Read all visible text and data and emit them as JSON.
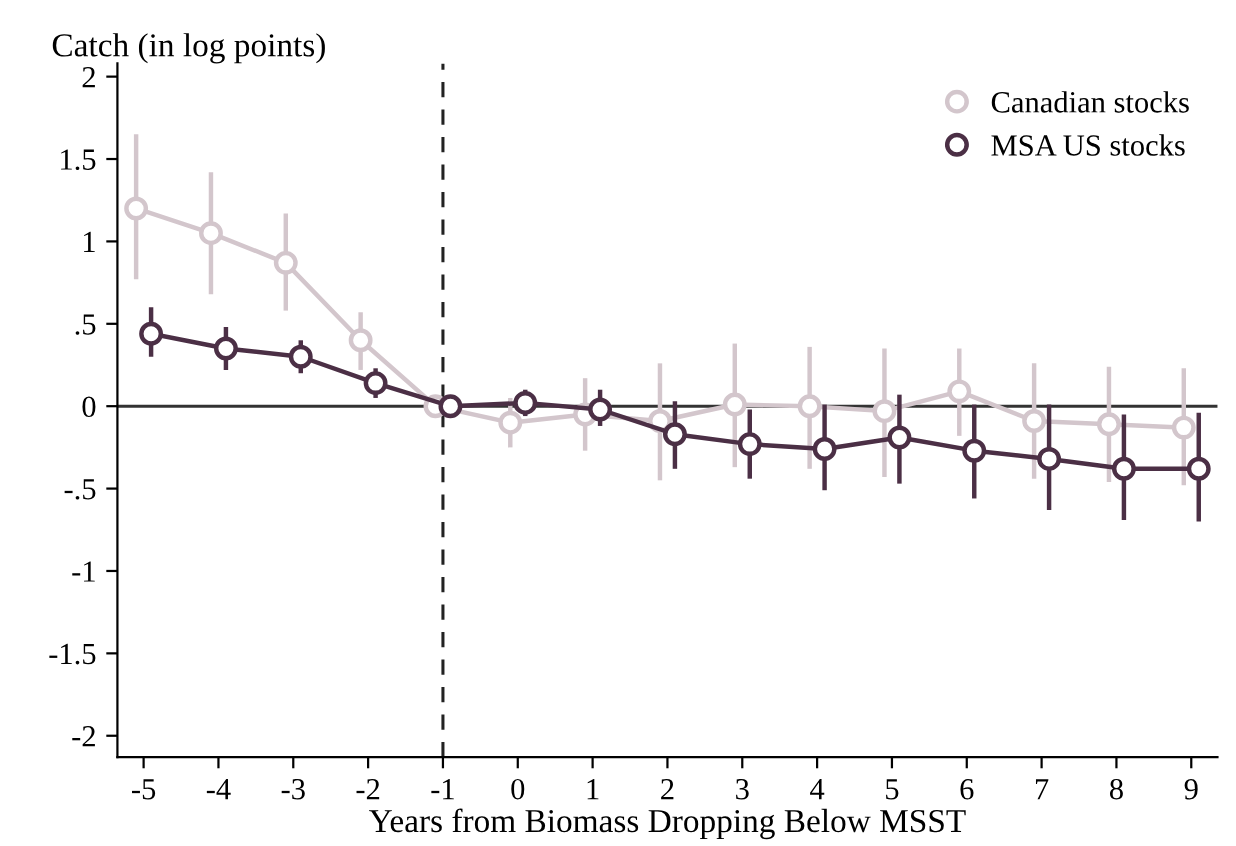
{
  "chart_data": {
    "type": "line",
    "ylabel": "Catch (in log points)",
    "xlabel": "Years from Biomass Dropping Below MSST",
    "series": [
      {
        "name": "Canadian stocks",
        "color": "#d3c6cc",
        "x": [
          -5.1,
          -4.1,
          -3.1,
          -2.1,
          -1.1,
          -0.1,
          0.9,
          1.9,
          2.9,
          3.9,
          4.9,
          5.9,
          6.9,
          7.9,
          8.9
        ],
        "values": [
          1.2,
          1.05,
          0.87,
          0.4,
          0,
          -0.1,
          -0.05,
          -0.09,
          0.01,
          0.0,
          -0.03,
          0.09,
          -0.09,
          -0.11,
          -0.13
        ],
        "errors": [
          [
            0.77,
            1.65
          ],
          [
            0.68,
            1.42
          ],
          [
            0.58,
            1.17
          ],
          [
            0.22,
            0.57
          ],
          null,
          [
            -0.25,
            0.05
          ],
          [
            -0.27,
            0.17
          ],
          [
            -0.45,
            0.26
          ],
          [
            -0.37,
            0.38
          ],
          [
            -0.38,
            0.36
          ],
          [
            -0.43,
            0.35
          ],
          [
            -0.18,
            0.35
          ],
          [
            -0.44,
            0.26
          ],
          [
            -0.46,
            0.24
          ],
          [
            -0.48,
            0.23
          ]
        ]
      },
      {
        "name": "MSA US stocks",
        "color": "#4b2f45",
        "x": [
          -4.9,
          -3.9,
          -2.9,
          -1.9,
          -0.9,
          0.1,
          1.1,
          2.1,
          3.1,
          4.1,
          5.1,
          6.1,
          7.1,
          8.1,
          9.1
        ],
        "values": [
          0.44,
          0.35,
          0.3,
          0.14,
          0,
          0.02,
          -0.02,
          -0.17,
          -0.23,
          -0.26,
          -0.19,
          -0.27,
          -0.32,
          -0.38,
          -0.38
        ],
        "errors": [
          [
            0.3,
            0.6
          ],
          [
            0.22,
            0.48
          ],
          [
            0.2,
            0.4
          ],
          [
            0.05,
            0.23
          ],
          null,
          [
            -0.06,
            0.1
          ],
          [
            -0.12,
            0.1
          ],
          [
            -0.38,
            0.03
          ],
          [
            -0.44,
            -0.02
          ],
          [
            -0.51,
            0.01
          ],
          [
            -0.47,
            0.07
          ],
          [
            -0.56,
            0.01
          ],
          [
            -0.63,
            0.01
          ],
          [
            -0.69,
            -0.05
          ],
          [
            -0.7,
            -0.04
          ]
        ]
      }
    ],
    "xlim": [
      -5.35,
      9.35
    ],
    "xticks": [
      -5,
      -4,
      -3,
      -2,
      -1,
      0,
      1,
      2,
      3,
      4,
      5,
      6,
      7,
      8,
      9
    ],
    "ylim": [
      -2.13,
      2.08
    ],
    "yticks": [
      {
        "value": -2,
        "label": "-2"
      },
      {
        "value": -1.5,
        "label": "-1.5"
      },
      {
        "value": -1,
        "label": "-1"
      },
      {
        "value": -0.5,
        "label": "-.5"
      },
      0,
      {
        "value": 0.5,
        "label": ".5"
      },
      1,
      1.5,
      2
    ],
    "ref_lines": [
      {
        "axis": "x",
        "value": -1,
        "color": "#222222",
        "line_style": "dashed"
      },
      {
        "axis": "y",
        "value": 0,
        "color": "#333333",
        "line_style": "solid"
      }
    ],
    "marker": "circle",
    "legend": "top right",
    "grid": false
  }
}
